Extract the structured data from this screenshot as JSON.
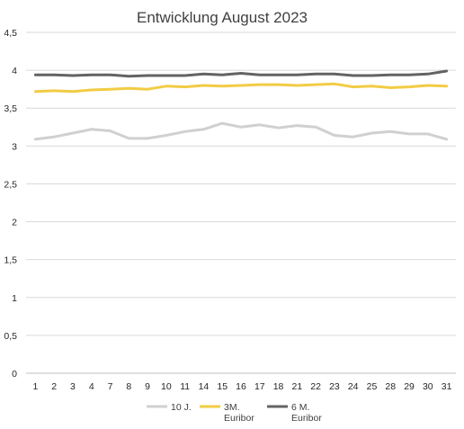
{
  "chart_data": {
    "type": "line",
    "title": "Entwicklung August 2023",
    "xlabel": "",
    "ylabel": "",
    "categories": [
      "1",
      "2",
      "3",
      "4",
      "7",
      "8",
      "9",
      "10",
      "11",
      "14",
      "15",
      "16",
      "17",
      "18",
      "21",
      "22",
      "23",
      "24",
      "25",
      "28",
      "29",
      "30",
      "31"
    ],
    "ylim": [
      0,
      4.5
    ],
    "yticks": [
      {
        "value": 0,
        "label": "0"
      },
      {
        "value": 0.5,
        "label": "0,5"
      },
      {
        "value": 1,
        "label": "1"
      },
      {
        "value": 1.5,
        "label": "1,5"
      },
      {
        "value": 2,
        "label": "2"
      },
      {
        "value": 2.5,
        "label": "2,5"
      },
      {
        "value": 3,
        "label": "3"
      },
      {
        "value": 3.5,
        "label": "3,5"
      },
      {
        "value": 4,
        "label": "4"
      },
      {
        "value": 4.5,
        "label": "4,5"
      }
    ],
    "grid": true,
    "legend_position": "bottom",
    "series": [
      {
        "name": "10 J.",
        "legend_lines": [
          "10 J."
        ],
        "color": "#d0d0d0",
        "values": [
          3.09,
          3.12,
          3.17,
          3.22,
          3.2,
          3.1,
          3.1,
          3.14,
          3.19,
          3.22,
          3.3,
          3.25,
          3.28,
          3.24,
          3.27,
          3.25,
          3.14,
          3.12,
          3.17,
          3.19,
          3.16,
          3.16,
          3.09
        ]
      },
      {
        "name": "3M. Euribor",
        "legend_lines": [
          "3M.",
          "Euribor"
        ],
        "color": "#f2cc44",
        "values": [
          3.72,
          3.73,
          3.72,
          3.74,
          3.75,
          3.76,
          3.75,
          3.79,
          3.78,
          3.8,
          3.79,
          3.8,
          3.81,
          3.81,
          3.8,
          3.81,
          3.82,
          3.78,
          3.79,
          3.77,
          3.78,
          3.8,
          3.79
        ]
      },
      {
        "name": "6 M. Euribor",
        "legend_lines": [
          "6 M.",
          "Euribor"
        ],
        "color": "#636363",
        "values": [
          3.94,
          3.94,
          3.93,
          3.94,
          3.94,
          3.92,
          3.93,
          3.93,
          3.93,
          3.95,
          3.94,
          3.96,
          3.94,
          3.94,
          3.94,
          3.95,
          3.95,
          3.93,
          3.93,
          3.94,
          3.94,
          3.95,
          3.99
        ]
      }
    ]
  }
}
